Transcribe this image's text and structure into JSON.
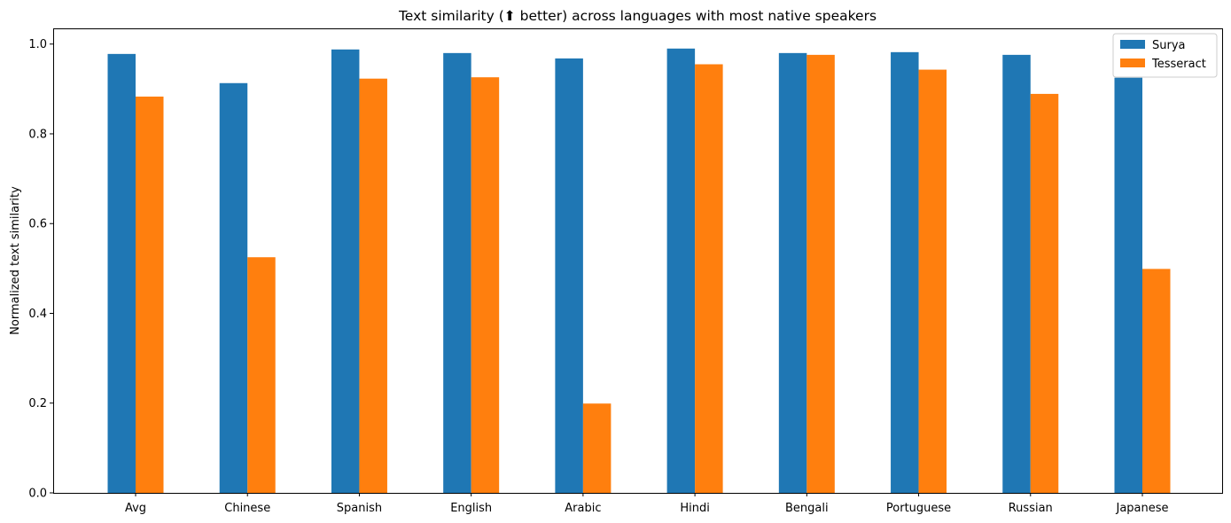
{
  "chart_data": {
    "type": "bar",
    "title": "Text similarity (⬆ better) across languages with most native speakers",
    "xlabel": "",
    "ylabel": "Normalized text similarity",
    "categories": [
      "Avg",
      "Chinese",
      "Spanish",
      "English",
      "Arabic",
      "Hindi",
      "Bengali",
      "Portuguese",
      "Russian",
      "Japanese"
    ],
    "series": [
      {
        "name": "Surya",
        "color": "#1f77b4",
        "values": [
          0.978,
          0.913,
          0.988,
          0.98,
          0.968,
          0.99,
          0.98,
          0.982,
          0.976,
          0.925
        ]
      },
      {
        "name": "Tesseract",
        "color": "#ff7f0e",
        "values": [
          0.883,
          0.525,
          0.923,
          0.926,
          0.199,
          0.955,
          0.976,
          0.943,
          0.889,
          0.499
        ]
      }
    ],
    "ylim": [
      0,
      1.035
    ],
    "yticks": [
      0.0,
      0.2,
      0.4,
      0.6,
      0.8,
      1.0
    ],
    "ytick_labels": [
      "0.0",
      "0.2",
      "0.4",
      "0.6",
      "0.8",
      "1.0"
    ],
    "grid": false,
    "legend_position": "top-right"
  }
}
